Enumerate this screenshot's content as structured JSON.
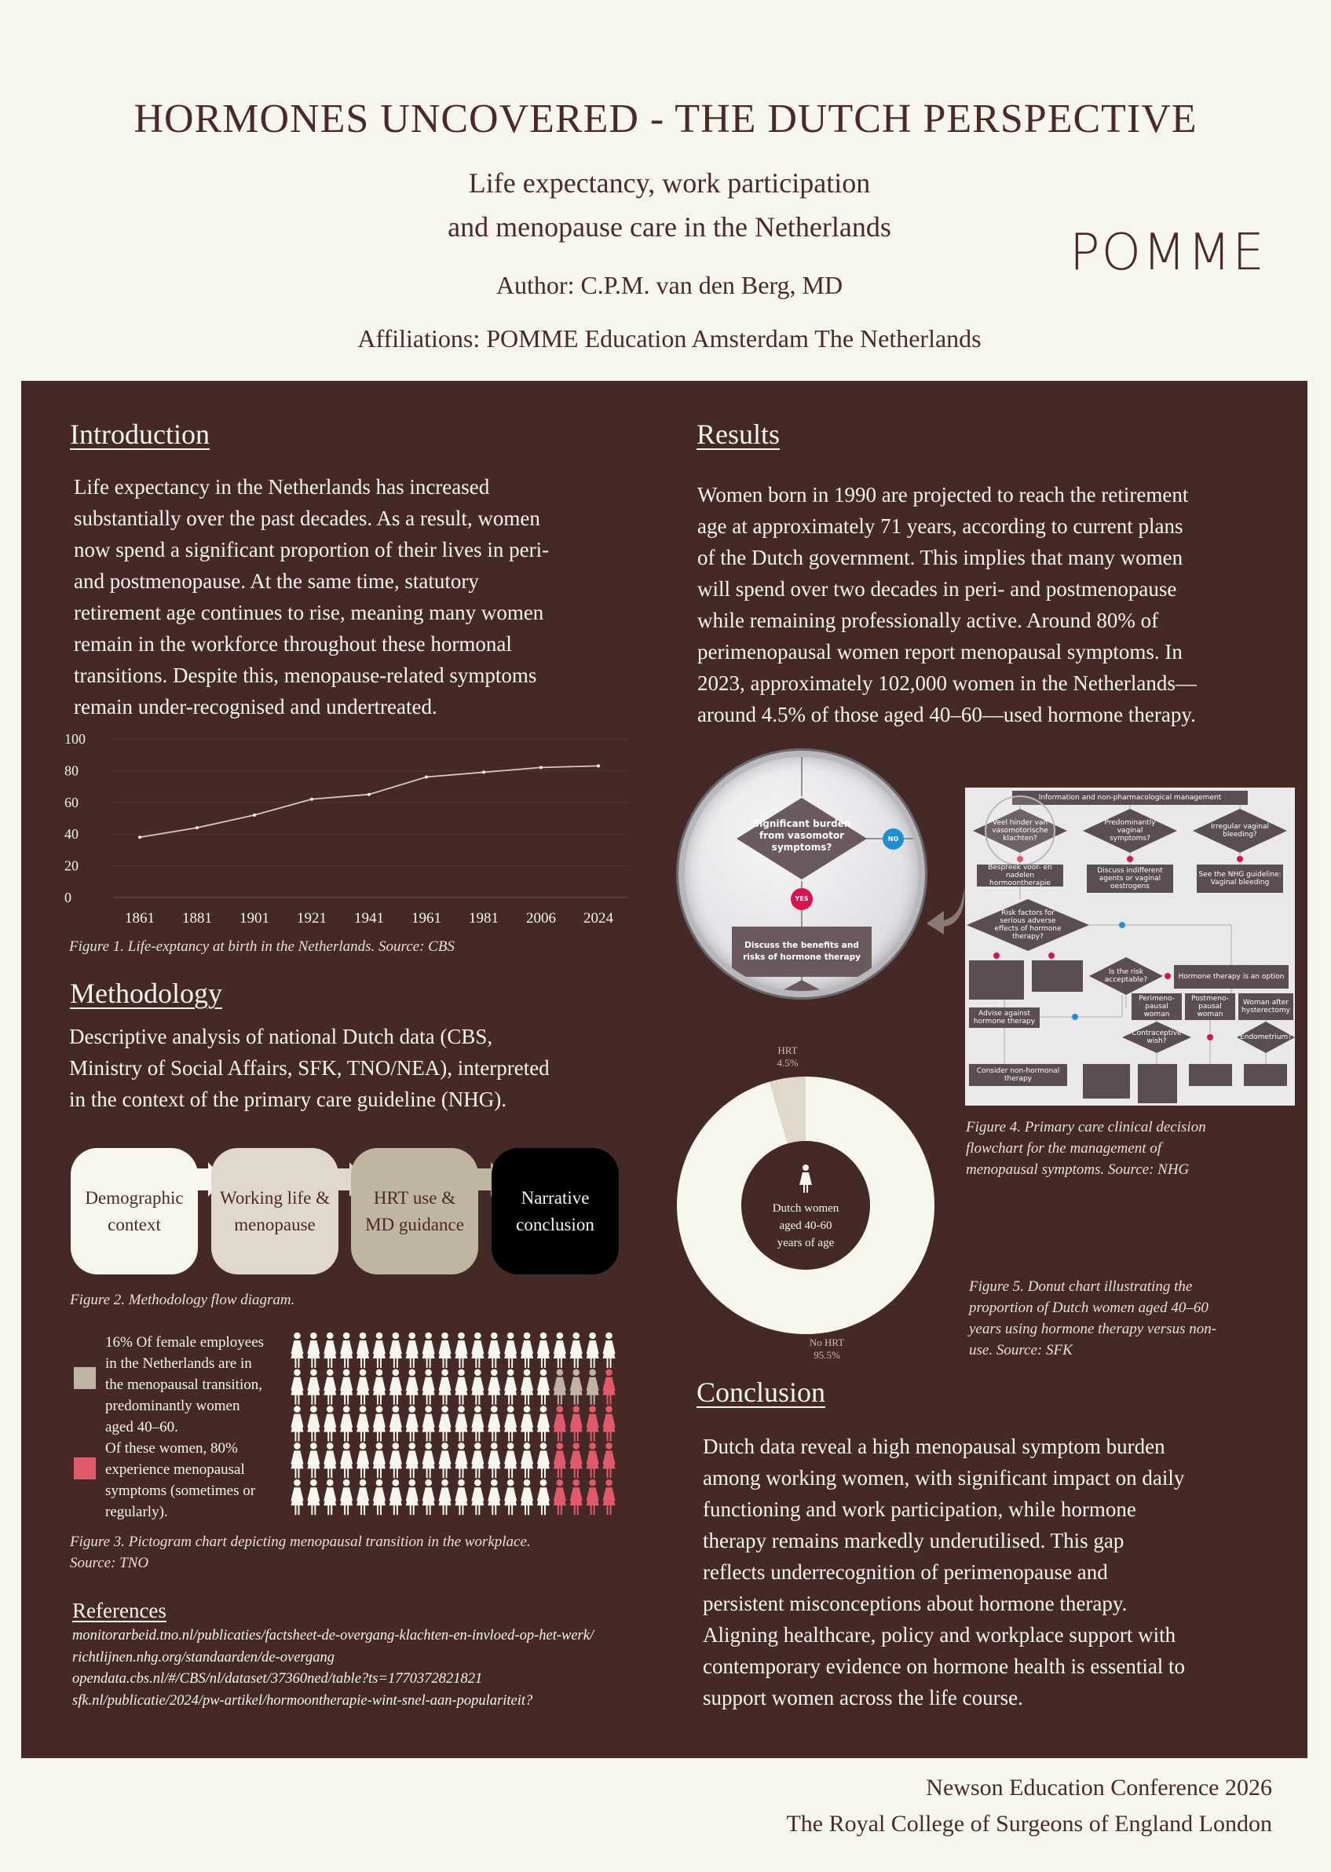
{
  "header": {
    "title": "HORMONES UNCOVERED - THE DUTCH PERSPECTIVE",
    "subtitle_line1": "Life expectancy, work participation",
    "subtitle_line2": "and menopause care in the Netherlands",
    "author": "Author: C.P.M. van den Berg, MD",
    "affiliations": "Affiliations: POMME Education Amsterdam The Netherlands",
    "logo": "POMME"
  },
  "introduction": {
    "heading": "Introduction",
    "lines": [
      "Life expectancy in the Netherlands has increased",
      "substantially over the past decades. As a result, women",
      "now spend a significant proportion of their lives in peri-",
      "and postmenopause. At the same time, statutory",
      "retirement age continues to rise, meaning many women",
      "remain in the workforce throughout these hormonal",
      "transitions. Despite this, menopause-related symptoms",
      "remain under-recognised and undertreated."
    ],
    "figure_caption": "Figure 1. Life-exptancy at birth in the Netherlands. Source: CBS"
  },
  "chart_data": [
    {
      "type": "line",
      "categories": [
        "1861",
        "1881",
        "1901",
        "1921",
        "1941",
        "1961",
        "1981",
        "2006",
        "2024"
      ],
      "values": [
        38,
        44,
        52,
        62,
        65,
        76,
        79,
        82,
        83
      ],
      "yticks": [
        0,
        20,
        40,
        60,
        80,
        100
      ],
      "ylim": [
        0,
        100
      ],
      "grid": true,
      "line_color": "#d8c8c0"
    },
    {
      "type": "pie",
      "donut": true,
      "slices": [
        {
          "label": "HRT",
          "value_label": "4.5%",
          "value": 4.5,
          "color": "#e0d8c8"
        },
        {
          "label": "No HRT",
          "value_label": "95.5%",
          "value": 95.5,
          "color": "#f6f5ee"
        }
      ],
      "center_text": [
        "Dutch women",
        "aged 40-60",
        "years of age"
      ]
    },
    {
      "type": "pictogram",
      "total": 100,
      "rows": 5,
      "columns": 20,
      "menopausal_transition": 16,
      "with_symptoms": 13,
      "colors": {
        "default": "#f6f5ee",
        "transition": "#bfb4a4",
        "symptoms": "#e05a6a"
      }
    }
  ],
  "methodology": {
    "heading": "Methodology",
    "lines": [
      "Descriptive analysis of national Dutch data (CBS,",
      "Ministry of Social Affairs, SFK, TNO/NEA), interpreted",
      "in the context of the primary care guideline (NHG)."
    ],
    "flow": [
      {
        "line1": "Demographic",
        "line2": "context"
      },
      {
        "line1": "Working life &",
        "line2": "menopause"
      },
      {
        "line1": "HRT use &",
        "line2": "MD guidance"
      },
      {
        "line1": "Narrative",
        "line2": "conclusion"
      }
    ],
    "flow_caption": "Figure 2. Methodology flow diagram."
  },
  "pictogram": {
    "legend1": [
      "16% Of female employees",
      "in the Netherlands are in",
      "the menopausal transition,",
      "predominantly women",
      "aged 40–60."
    ],
    "legend2": [
      "Of these women, 80%",
      "experience menopausal",
      "symptoms (sometimes or",
      "regularly)."
    ],
    "caption_line1": "Figure 3. Pictogram chart depicting menopausal transition in the workplace.",
    "caption_line2": "Source: TNO"
  },
  "references": {
    "heading": "References",
    "items": [
      "monitorarbeid.tno.nl/publicaties/factsheet-de-overgang-klachten-en-invloed-op-het-werk/",
      "richtlijnen.nhg.org/standaarden/de-overgang",
      "opendata.cbs.nl/#/CBS/nl/dataset/37360ned/table?ts=1770372821821",
      "sfk.nl/publicatie/2024/pw-artikel/hormoontherapie-wint-snel-aan-populariteit?"
    ]
  },
  "results": {
    "heading": "Results",
    "lines": [
      "Women born in 1990 are projected to reach the retirement",
      "age at approximately 71 years, according to current plans",
      "of the Dutch government. This implies that many women",
      "will spend over two decades in peri- and postmenopause",
      "while remaining professionally active. Around 80% of",
      "perimenopausal women report menopausal symptoms. In",
      "2023, approximately 102,000 women in the Netherlands—",
      "around 4.5% of those aged 40–60—used hormone therapy."
    ],
    "magnifier": {
      "question_line1": "Significant burden",
      "question_line2": "from vasomotor",
      "question_line3": "symptoms?",
      "no": "NO",
      "yes": "YES",
      "box_line1": "Discuss the benefits and",
      "box_line2": "risks of hormone therapy"
    },
    "flowchart": {
      "top": "Information and non-pharmacological management",
      "q1": "Veel hinder van vasomotorische klachten?",
      "q2": "Predominantly vaginal symptoms?",
      "q3": "Irregular vaginal bleeding?",
      "a2": "Discuss indifferent agents or vaginal oestrogens",
      "a3": "See the NHG guideline: Vaginal bleeding",
      "a1": "Bespreek voor- en nadelen hormoontherapie",
      "q4": "Risk factors for serious adverse effects of hormone therapy?",
      "q5": "Is the risk acceptable?",
      "opt": "Hormone therapy is an option",
      "advise": "Advise against hormone therapy",
      "nonhormonal": "Consider non-hormonal therapy",
      "peri": "Perimeno-pausal woman",
      "post": "Postmeno-pausal woman",
      "hyst": "Woman after hysterectomy",
      "contra": "Contraceptive wish?",
      "endo": "Endometrium?",
      "yes": "YES",
      "no": "NO"
    },
    "flowchart_caption": [
      "Figure 4. Primary care clinical decision",
      "flowchart for the management of",
      "menopausal symptoms. Source: NHG"
    ],
    "donut_caption": [
      "Figure 5. Donut chart illustrating the",
      "proportion of Dutch women aged 40–60",
      "years using hormone therapy versus non-",
      "use. Source: SFK"
    ]
  },
  "conclusion": {
    "heading": "Conclusion",
    "lines": [
      "Dutch data reveal a high menopausal symptom burden",
      "among working women, with significant impact on daily",
      "functioning and work participation, while hormone",
      "therapy remains markedly underutilised. This gap",
      "reflects underrecognition of perimenopause and",
      "persistent misconceptions about hormone therapy.",
      "Aligning healthcare, policy and workplace support with",
      "contemporary evidence on hormone health is essential to",
      "support women across the life course."
    ]
  },
  "footer": {
    "line1": "Newson Education Conference 2026",
    "line2": "The Royal College of Surgeons of England London"
  },
  "colors": {
    "panel": "#442927",
    "background": "#f6f5ee",
    "text_dark": "#4a2a26",
    "accent_red": "#e05a6a",
    "accent_blue": "#1e8fd0",
    "yes_red": "#d8144e"
  }
}
